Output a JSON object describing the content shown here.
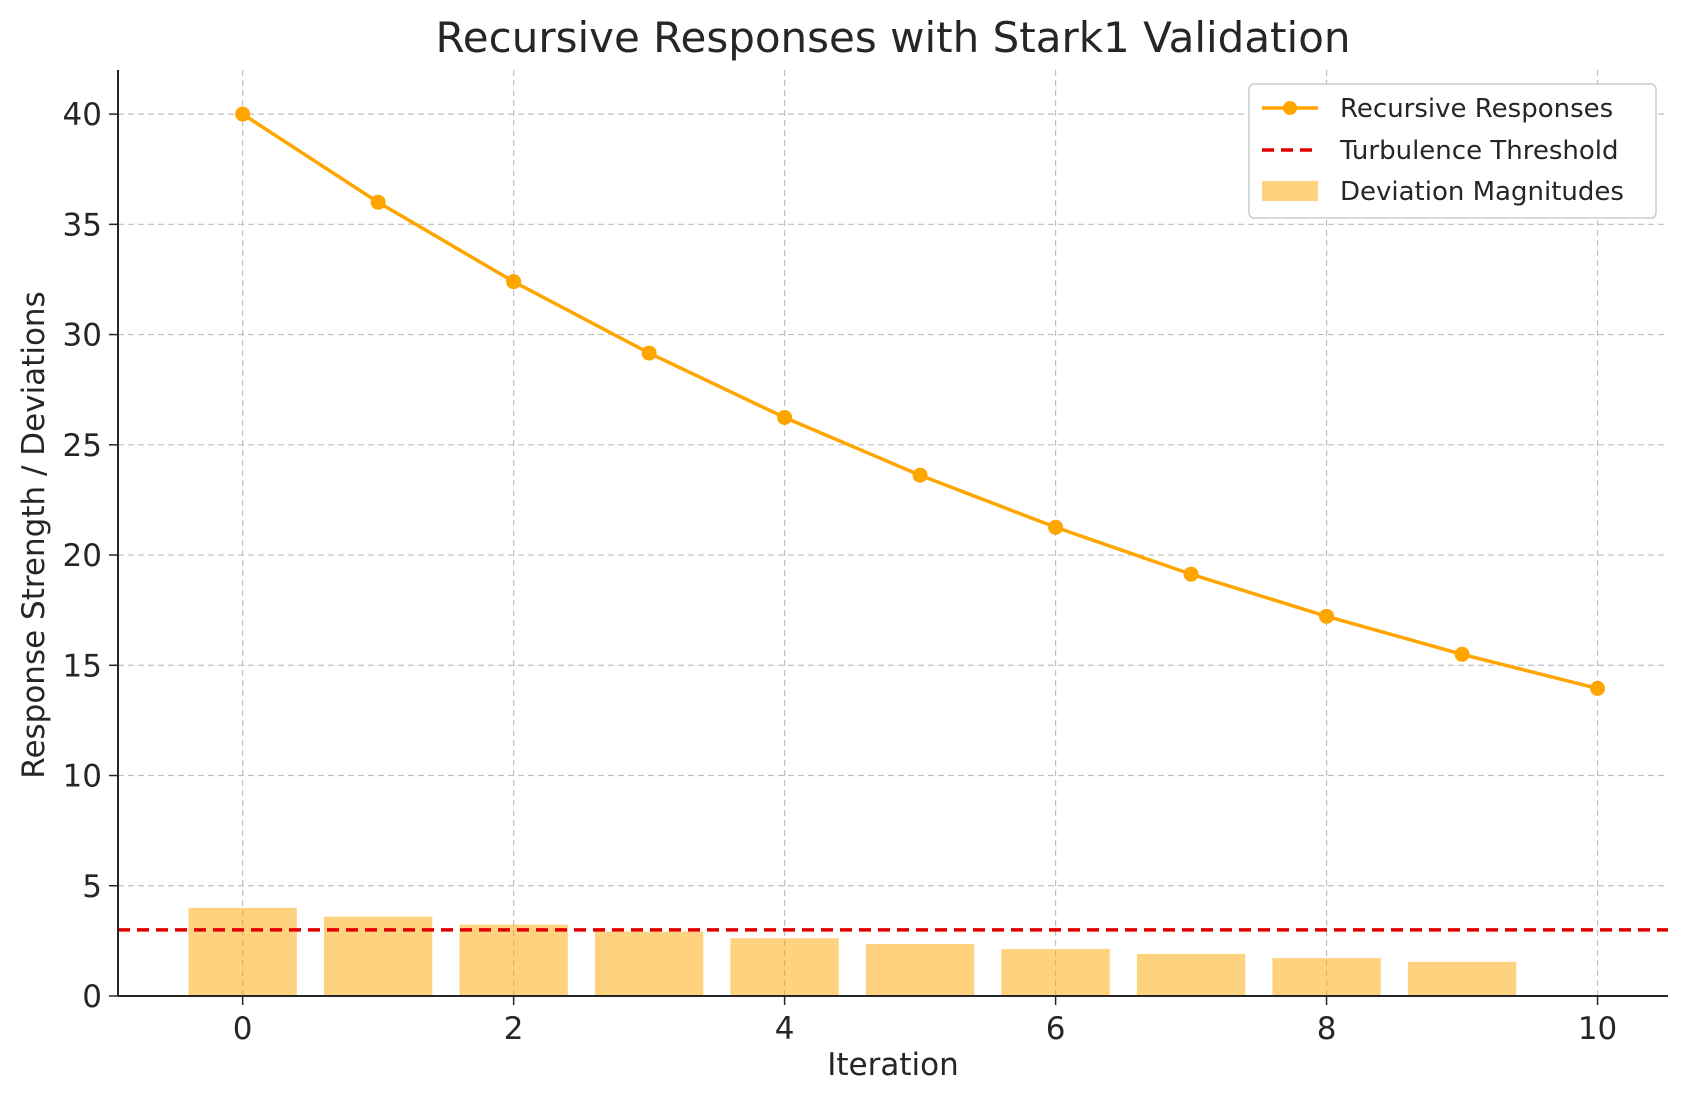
{
  "chart_data": {
    "type": "line",
    "title": "Recursive Responses with Stark1 Validation",
    "xlabel": "Iteration",
    "ylabel": "Response Strength / Deviations",
    "xlim": [
      -0.92,
      10.52
    ],
    "ylim": [
      0,
      42
    ],
    "xticks": [
      "0",
      "2",
      "4",
      "6",
      "8",
      "10"
    ],
    "yticks": [
      "0",
      "5",
      "10",
      "15",
      "20",
      "25",
      "30",
      "35",
      "40"
    ],
    "grid": true,
    "legend_position": "top-right",
    "series": [
      {
        "name": "Recursive Responses",
        "kind": "line",
        "marker": "circle",
        "color": "#FFA500",
        "x": [
          0,
          1,
          2,
          3,
          4,
          5,
          6,
          7,
          8,
          9,
          10
        ],
        "values": [
          40,
          36,
          32.4,
          29.16,
          26.24,
          23.62,
          21.26,
          19.13,
          17.22,
          15.5,
          13.95
        ]
      },
      {
        "name": "Turbulence Threshold",
        "kind": "hline",
        "style": "dashed",
        "color": "#E00000",
        "value": 3
      },
      {
        "name": "Deviation Magnitudes",
        "kind": "bar",
        "color": "#FFA500",
        "opacity": 0.5,
        "x": [
          0,
          1,
          2,
          3,
          4,
          5,
          6,
          7,
          8,
          9
        ],
        "values": [
          4.0,
          3.6,
          3.24,
          2.92,
          2.62,
          2.36,
          2.13,
          1.91,
          1.72,
          1.55
        ],
        "bar_width": 0.8
      }
    ]
  }
}
